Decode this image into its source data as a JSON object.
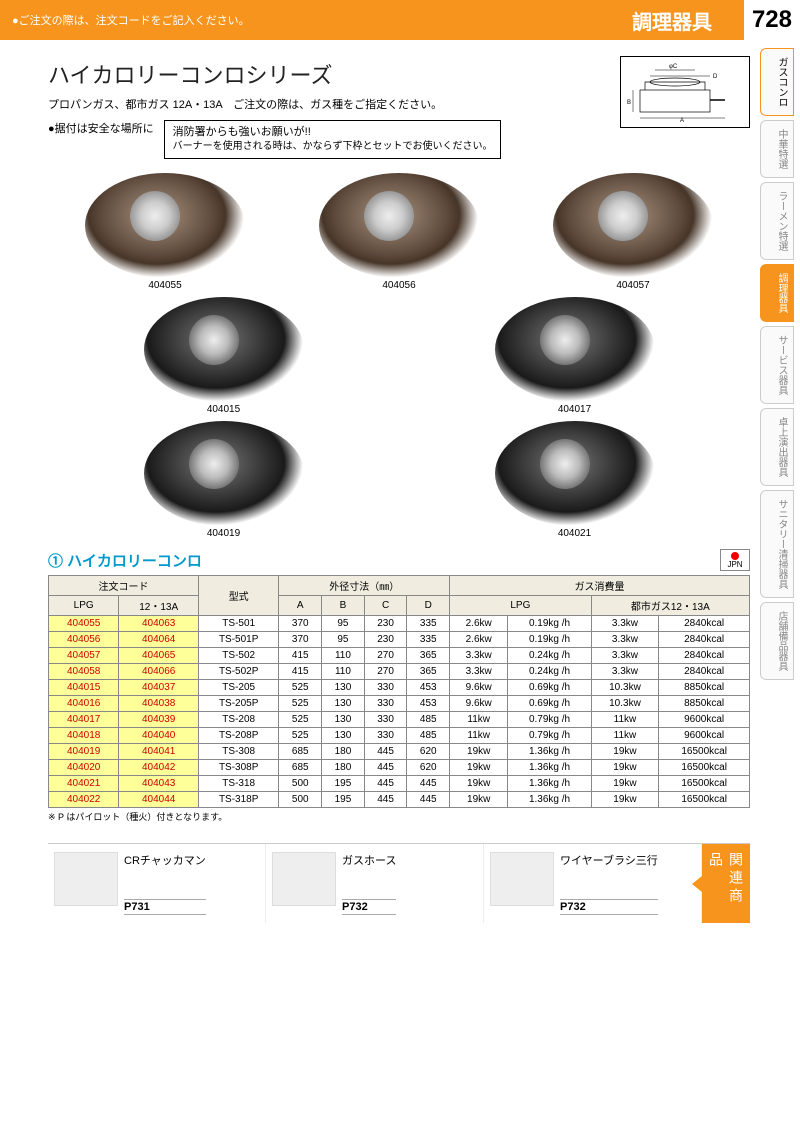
{
  "header": {
    "notice": "●ご注文の際は、注文コードをご記入ください。",
    "category": "調理器具",
    "page_no": "728"
  },
  "side_tabs": [
    {
      "label": "ガスコンロ",
      "active": true
    },
    {
      "label": "中華特選"
    },
    {
      "label": "ラーメン特選"
    },
    {
      "label": "調理器具",
      "highlight": true
    },
    {
      "label": "サービス器具"
    },
    {
      "label": "卓上演出器具"
    },
    {
      "label": "サニタリー清掃器具"
    },
    {
      "label": "店舗備品器具"
    }
  ],
  "title": "ハイカロリーコンロシリーズ",
  "subtitle": "プロパンガス、都市ガス 12A・13A　ご注文の際は、ガス種をご指定ください。",
  "warn1": "●据付は安全な場所に",
  "warn_box": {
    "l1": "消防署からも強いお願いが!!",
    "l2": "バーナーを使用される時は、かならず下枠とセットでお使いください。"
  },
  "diagram_labels": {
    "a": "A",
    "b": "B",
    "c": "φC",
    "d": "D"
  },
  "products": {
    "row1": [
      {
        "code": "404055",
        "variant": "bronze"
      },
      {
        "code": "404056",
        "variant": "bronze"
      },
      {
        "code": "404057",
        "variant": "bronze"
      }
    ],
    "row2": [
      {
        "code": "404015",
        "variant": "black"
      },
      {
        "code": "404017",
        "variant": "black"
      }
    ],
    "row3": [
      {
        "code": "404019",
        "variant": "black"
      },
      {
        "code": "404021",
        "variant": "black"
      }
    ]
  },
  "section_title": "① ハイカロリーコンロ",
  "jpn_badge": "JPN",
  "table": {
    "head": {
      "order_code": "注文コード",
      "lpg": "LPG",
      "city": "12・13A",
      "model": "型式",
      "outer": "外径寸法（㎜）",
      "a": "A",
      "b": "B",
      "c": "C",
      "d": "D",
      "gas": "ガス消費量",
      "gas_lpg": "LPG",
      "gas_city": "都市ガス12・13A"
    },
    "rows": [
      {
        "lpg": "404055",
        "city": "404063",
        "model": "TS-501",
        "a": "370",
        "b": "95",
        "c": "230",
        "d": "335",
        "gkw": "2.6kw",
        "gkg": "0.19kg /h",
        "ckw": "3.3kw",
        "ckcal": "2840kcal"
      },
      {
        "lpg": "404056",
        "city": "404064",
        "model": "TS-501P",
        "a": "370",
        "b": "95",
        "c": "230",
        "d": "335",
        "gkw": "2.6kw",
        "gkg": "0.19kg /h",
        "ckw": "3.3kw",
        "ckcal": "2840kcal"
      },
      {
        "lpg": "404057",
        "city": "404065",
        "model": "TS-502",
        "a": "415",
        "b": "110",
        "c": "270",
        "d": "365",
        "gkw": "3.3kw",
        "gkg": "0.24kg /h",
        "ckw": "3.3kw",
        "ckcal": "2840kcal"
      },
      {
        "lpg": "404058",
        "city": "404066",
        "model": "TS-502P",
        "a": "415",
        "b": "110",
        "c": "270",
        "d": "365",
        "gkw": "3.3kw",
        "gkg": "0.24kg /h",
        "ckw": "3.3kw",
        "ckcal": "2840kcal"
      },
      {
        "lpg": "404015",
        "city": "404037",
        "model": "TS-205",
        "a": "525",
        "b": "130",
        "c": "330",
        "d": "453",
        "gkw": "9.6kw",
        "gkg": "0.69kg /h",
        "ckw": "10.3kw",
        "ckcal": "8850kcal"
      },
      {
        "lpg": "404016",
        "city": "404038",
        "model": "TS-205P",
        "a": "525",
        "b": "130",
        "c": "330",
        "d": "453",
        "gkw": "9.6kw",
        "gkg": "0.69kg /h",
        "ckw": "10.3kw",
        "ckcal": "8850kcal"
      },
      {
        "lpg": "404017",
        "city": "404039",
        "model": "TS-208",
        "a": "525",
        "b": "130",
        "c": "330",
        "d": "485",
        "gkw": "11kw",
        "gkg": "0.79kg /h",
        "ckw": "11kw",
        "ckcal": "9600kcal"
      },
      {
        "lpg": "404018",
        "city": "404040",
        "model": "TS-208P",
        "a": "525",
        "b": "130",
        "c": "330",
        "d": "485",
        "gkw": "11kw",
        "gkg": "0.79kg /h",
        "ckw": "11kw",
        "ckcal": "9600kcal"
      },
      {
        "lpg": "404019",
        "city": "404041",
        "model": "TS-308",
        "a": "685",
        "b": "180",
        "c": "445",
        "d": "620",
        "gkw": "19kw",
        "gkg": "1.36kg /h",
        "ckw": "19kw",
        "ckcal": "16500kcal"
      },
      {
        "lpg": "404020",
        "city": "404042",
        "model": "TS-308P",
        "a": "685",
        "b": "180",
        "c": "445",
        "d": "620",
        "gkw": "19kw",
        "gkg": "1.36kg /h",
        "ckw": "19kw",
        "ckcal": "16500kcal"
      },
      {
        "lpg": "404021",
        "city": "404043",
        "model": "TS-318",
        "a": "500",
        "b": "195",
        "c": "445",
        "d": "445",
        "gkw": "19kw",
        "gkg": "1.36kg /h",
        "ckw": "19kw",
        "ckcal": "16500kcal"
      },
      {
        "lpg": "404022",
        "city": "404044",
        "model": "TS-318P",
        "a": "500",
        "b": "195",
        "c": "445",
        "d": "445",
        "gkw": "19kw",
        "gkg": "1.36kg /h",
        "ckw": "19kw",
        "ckcal": "16500kcal"
      }
    ],
    "note": "※ P はパイロット（種火）付きとなります。"
  },
  "related": {
    "label": "関連商品",
    "items": [
      {
        "name": "CRチャッカマン",
        "page": "P731"
      },
      {
        "name": "ガスホース",
        "page": "P732"
      },
      {
        "name": "ワイヤーブラシ三行",
        "page": "P732"
      }
    ]
  },
  "colors": {
    "accent": "#f7941e",
    "title_blue": "#0099cc",
    "hl_bg": "#ffff99",
    "hl_fg": "#c00"
  }
}
